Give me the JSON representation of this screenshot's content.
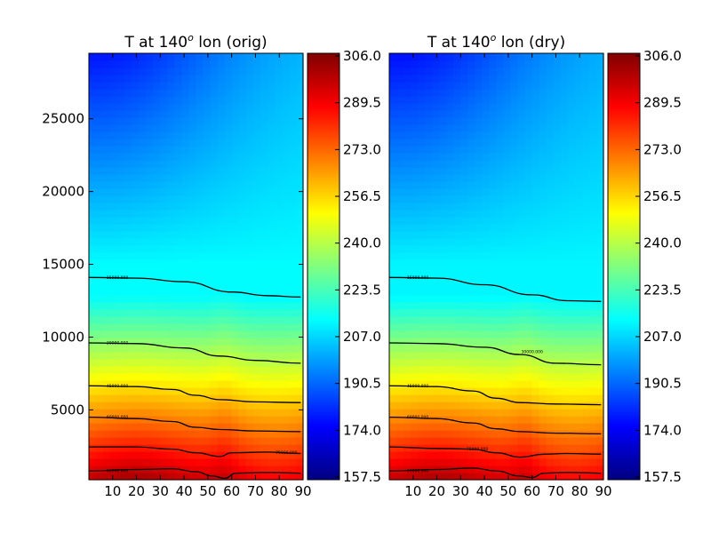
{
  "chart_data": [
    {
      "type": "heatmap",
      "title": "T at 140$^o$  lon (orig)",
      "title_parts": {
        "pre": "T at 140",
        "sup": "o",
        "post": "  lon (orig)"
      },
      "x_range": [
        0,
        90
      ],
      "y_range": [
        200,
        29500
      ],
      "x_ticks": [
        10,
        20,
        30,
        40,
        50,
        60,
        70,
        80,
        90
      ],
      "y_ticks": [
        5000,
        10000,
        15000,
        20000,
        25000
      ],
      "colormap": "jet",
      "color_range": [
        157.5,
        306.0
      ],
      "colorbar_ticks": [
        "306.0",
        "289.5",
        "273.0",
        "256.5",
        "240.0",
        "223.5",
        "207.0",
        "190.5",
        "174.0",
        "157.5"
      ],
      "contours": [
        {
          "label": "15000.000",
          "points": [
            [
              0,
              14100
            ],
            [
              20,
              14050
            ],
            [
              40,
              13800
            ],
            [
              60,
              13100
            ],
            [
              75,
              12850
            ],
            [
              89,
              12750
            ]
          ]
        },
        {
          "label": "30000.000",
          "points": [
            [
              0,
              9600
            ],
            [
              20,
              9550
            ],
            [
              40,
              9250
            ],
            [
              55,
              8700
            ],
            [
              70,
              8400
            ],
            [
              89,
              8200
            ]
          ]
        },
        {
          "label": "45000.000",
          "points": [
            [
              0,
              6650
            ],
            [
              20,
              6600
            ],
            [
              35,
              6400
            ],
            [
              45,
              6000
            ],
            [
              55,
              5700
            ],
            [
              70,
              5550
            ],
            [
              89,
              5500
            ]
          ]
        },
        {
          "label": "60000.000",
          "points": [
            [
              0,
              4500
            ],
            [
              20,
              4400
            ],
            [
              35,
              4200
            ],
            [
              45,
              3800
            ],
            [
              55,
              3650
            ],
            [
              70,
              3550
            ],
            [
              89,
              3500
            ]
          ]
        },
        {
          "label": "75000.000",
          "points": [
            [
              0,
              2450
            ],
            [
              20,
              2450
            ],
            [
              35,
              2300
            ],
            [
              45,
              2050
            ],
            [
              55,
              1800
            ],
            [
              60,
              2050
            ],
            [
              75,
              2100
            ],
            [
              89,
              2000
            ]
          ]
        },
        {
          "label": "90000.000",
          "points": [
            [
              0,
              800
            ],
            [
              20,
              900
            ],
            [
              35,
              950
            ],
            [
              45,
              750
            ],
            [
              52,
              450
            ],
            [
              57,
              300
            ],
            [
              62,
              650
            ],
            [
              75,
              700
            ],
            [
              89,
              650
            ]
          ]
        }
      ]
    },
    {
      "type": "heatmap",
      "title": "T at 140$^o$  lon (dry)",
      "title_parts": {
        "pre": "T at 140",
        "sup": "o",
        "post": "  lon (dry)"
      },
      "x_range": [
        0,
        90
      ],
      "y_range": [
        200,
        29500
      ],
      "x_ticks": [
        10,
        20,
        30,
        40,
        50,
        60,
        70,
        80,
        90
      ],
      "colormap": "jet",
      "color_range": [
        157.5,
        306.0
      ],
      "colorbar_ticks": [
        "306.0",
        "289.5",
        "273.0",
        "256.5",
        "240.0",
        "223.5",
        "207.0",
        "190.5",
        "174.0",
        "157.5"
      ],
      "contours": [
        {
          "label": "15000.000",
          "points": [
            [
              0,
              14100
            ],
            [
              20,
              14050
            ],
            [
              40,
              13600
            ],
            [
              60,
              12900
            ],
            [
              75,
              12500
            ],
            [
              89,
              12450
            ]
          ]
        },
        {
          "label": "30000.000",
          "points": [
            [
              0,
              9600
            ],
            [
              20,
              9550
            ],
            [
              40,
              9300
            ],
            [
              55,
              8800
            ],
            [
              70,
              8200
            ],
            [
              89,
              8100
            ]
          ]
        },
        {
          "label": "45000.000",
          "points": [
            [
              0,
              6650
            ],
            [
              20,
              6600
            ],
            [
              35,
              6300
            ],
            [
              45,
              5800
            ],
            [
              55,
              5500
            ],
            [
              70,
              5400
            ],
            [
              89,
              5350
            ]
          ]
        },
        {
          "label": "60000.000",
          "points": [
            [
              0,
              4500
            ],
            [
              20,
              4400
            ],
            [
              35,
              4100
            ],
            [
              45,
              3700
            ],
            [
              55,
              3500
            ],
            [
              70,
              3400
            ],
            [
              89,
              3350
            ]
          ]
        },
        {
          "label": "75000.000",
          "points": [
            [
              0,
              2450
            ],
            [
              20,
              2350
            ],
            [
              35,
              2300
            ],
            [
              45,
              2050
            ],
            [
              55,
              1750
            ],
            [
              65,
              1950
            ],
            [
              75,
              2000
            ],
            [
              89,
              1950
            ]
          ]
        },
        {
          "label": "90000.000",
          "points": [
            [
              0,
              800
            ],
            [
              20,
              900
            ],
            [
              35,
              1000
            ],
            [
              45,
              800
            ],
            [
              55,
              450
            ],
            [
              60,
              350
            ],
            [
              65,
              650
            ],
            [
              75,
              700
            ],
            [
              89,
              650
            ]
          ]
        }
      ]
    }
  ]
}
